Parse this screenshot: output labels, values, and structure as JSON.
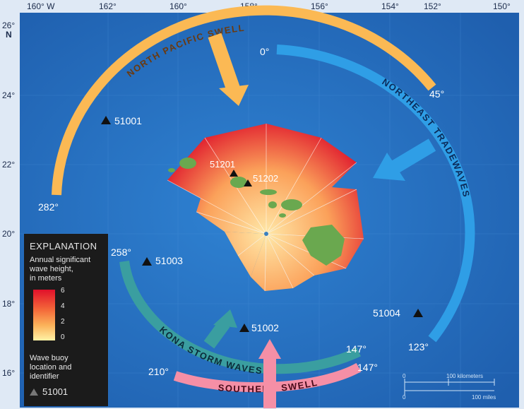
{
  "axes": {
    "lon_ticks": [
      "160° W",
      "162°",
      "160°",
      "158°",
      "156°",
      "154°",
      "152°",
      "150°"
    ],
    "lat_ticks": [
      "26°",
      "24°",
      "22°",
      "20°",
      "18°",
      "16°"
    ],
    "lat_north": "N"
  },
  "swells": {
    "north_pacific": "NORTH PACIFIC SWELL",
    "northeast_tradewaves": "NORTHEAST TRADEWAVES",
    "kona_storm": "KONA STORM WAVES",
    "southern": "SOUTHERN SWELL"
  },
  "bearings": {
    "b0": "0°",
    "b45": "45°",
    "b282": "282°",
    "b258": "258°",
    "b147_kona": "147°",
    "b147_south": "147°",
    "b210": "210°",
    "b123": "123°"
  },
  "buoys": {
    "b51001": "51001",
    "b51201": "51201",
    "b51202": "51202",
    "b51003": "51003",
    "b51002": "51002",
    "b51004": "51004"
  },
  "legend": {
    "title": "EXPLANATION",
    "subtitle_line1": "Annual significant",
    "subtitle_line2": "wave height,",
    "subtitle_line3": "in meters",
    "ramp_labels": [
      "6",
      "4",
      "2",
      "0"
    ],
    "buoy_line1": "Wave buoy",
    "buoy_line2": "location and",
    "buoy_line3": "identifier",
    "buoy_example": "51001"
  },
  "scale": {
    "km_label": "100 kilometers",
    "mi_label": "100 miles",
    "zero": "0"
  },
  "colors": {
    "ocean": "#2a73c4",
    "north_swell": "#fbb954",
    "tradewaves": "#2f9ee6",
    "kona": "#3a9ea0",
    "southern": "#f58fa6",
    "rose_high": "#e01e30",
    "rose_low": "#ffe6a0"
  }
}
